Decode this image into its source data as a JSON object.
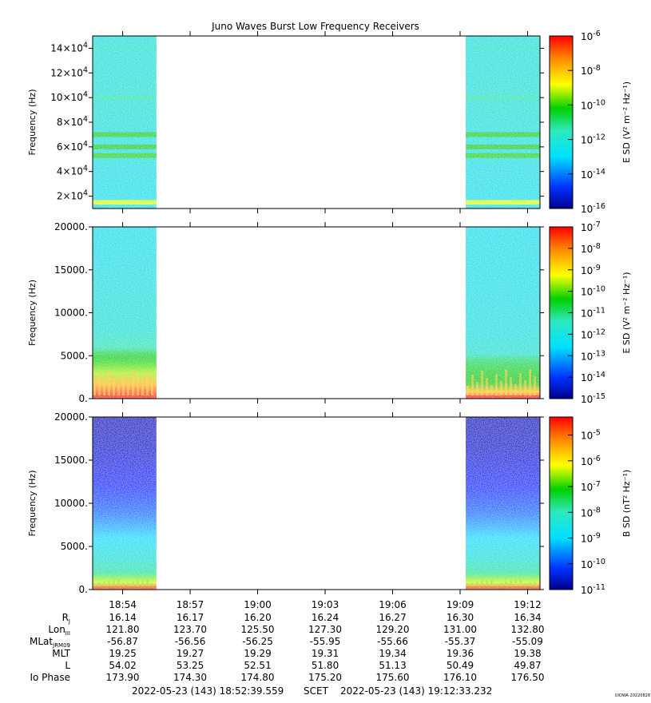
{
  "title": "Juno Waves Burst Low Frequency Receivers",
  "colors": {
    "axis": "#000000",
    "background": "#ffffff"
  },
  "chart_data": [
    {
      "type": "heatmap",
      "panel": 1,
      "ylabel": "Frequency (Hz)",
      "ylim": [
        10000,
        150000
      ],
      "yticks": [
        {
          "value": 20000,
          "label_base": "2×10",
          "label_exp": "4"
        },
        {
          "value": 40000,
          "label_base": "4×10",
          "label_exp": "4"
        },
        {
          "value": 60000,
          "label_base": "6×10",
          "label_exp": "4"
        },
        {
          "value": 80000,
          "label_base": "8×10",
          "label_exp": "4"
        },
        {
          "value": 100000,
          "label_base": "10×10",
          "label_exp": "4"
        },
        {
          "value": 120000,
          "label_base": "12×10",
          "label_exp": "4"
        },
        {
          "value": 140000,
          "label_base": "14×10",
          "label_exp": "4"
        }
      ],
      "data_segments": [
        {
          "start": "18:52:40",
          "end": "18:55:30"
        },
        {
          "start": "19:09:15",
          "end": "19:12:33"
        }
      ],
      "bands": [
        {
          "freq": 15000,
          "level": 0.72
        },
        {
          "freq": 53000,
          "level": 0.6
        },
        {
          "freq": 60000,
          "level": 0.57
        },
        {
          "freq": 70000,
          "level": 0.57
        },
        {
          "freq": 100000,
          "level": 0.45
        },
        {
          "freq": 140000,
          "level": 0.4
        }
      ],
      "colorbar": {
        "label": "E SD (V² m⁻² Hz⁻¹)",
        "exp_range": [
          -16,
          -6
        ],
        "ticks": [
          {
            "exp": -6,
            "label_base": "10",
            "label_exp": "-6"
          },
          {
            "exp": -8,
            "label_base": "10",
            "label_exp": "-8"
          },
          {
            "exp": -10,
            "label_base": "10",
            "label_exp": "-10"
          },
          {
            "exp": -12,
            "label_base": "10",
            "label_exp": "-12"
          },
          {
            "exp": -14,
            "label_base": "10",
            "label_exp": "-14"
          },
          {
            "exp": -16,
            "label_base": "10",
            "label_exp": "-16"
          }
        ]
      }
    },
    {
      "type": "heatmap",
      "panel": 2,
      "ylabel": "Frequency (Hz)",
      "ylim": [
        0,
        20000
      ],
      "yticks": [
        {
          "value": 0,
          "label_base": "0.",
          "label_exp": ""
        },
        {
          "value": 5000,
          "label_base": "5000.",
          "label_exp": ""
        },
        {
          "value": 10000,
          "label_base": "10000.",
          "label_exp": ""
        },
        {
          "value": 15000,
          "label_base": "15000.",
          "label_exp": ""
        },
        {
          "value": 20000,
          "label_base": "20000.",
          "label_exp": ""
        }
      ],
      "data_segments": [
        {
          "start": "18:52:40",
          "end": "18:55:30"
        },
        {
          "start": "19:09:15",
          "end": "19:12:33"
        }
      ],
      "colorbar": {
        "label": "E SD (V² m⁻² Hz⁻¹)",
        "exp_range": [
          -15,
          -7
        ],
        "ticks": [
          {
            "exp": -7,
            "label_base": "10",
            "label_exp": "-7"
          },
          {
            "exp": -8,
            "label_base": "10",
            "label_exp": "-8"
          },
          {
            "exp": -9,
            "label_base": "10",
            "label_exp": "-9"
          },
          {
            "exp": -10,
            "label_base": "10",
            "label_exp": "-10"
          },
          {
            "exp": -11,
            "label_base": "10",
            "label_exp": "-11"
          },
          {
            "exp": -12,
            "label_base": "10",
            "label_exp": "-12"
          },
          {
            "exp": -13,
            "label_base": "10",
            "label_exp": "-13"
          },
          {
            "exp": -14,
            "label_base": "10",
            "label_exp": "-14"
          },
          {
            "exp": -15,
            "label_base": "10",
            "label_exp": "-15"
          }
        ]
      }
    },
    {
      "type": "heatmap",
      "panel": 3,
      "ylabel": "Frequency (Hz)",
      "ylim": [
        0,
        20000
      ],
      "yticks": [
        {
          "value": 0,
          "label_base": "0.",
          "label_exp": ""
        },
        {
          "value": 5000,
          "label_base": "5000.",
          "label_exp": ""
        },
        {
          "value": 10000,
          "label_base": "10000.",
          "label_exp": ""
        },
        {
          "value": 15000,
          "label_base": "15000.",
          "label_exp": ""
        },
        {
          "value": 20000,
          "label_base": "20000.",
          "label_exp": ""
        }
      ],
      "data_segments": [
        {
          "start": "18:52:40",
          "end": "18:55:30"
        },
        {
          "start": "19:09:15",
          "end": "19:12:33"
        }
      ],
      "colorbar": {
        "label": "B SD (nT² Hz⁻¹)",
        "exp_range": [
          -11,
          -4.3
        ],
        "ticks": [
          {
            "exp": -5,
            "label_base": "10",
            "label_exp": "-5"
          },
          {
            "exp": -6,
            "label_base": "10",
            "label_exp": "-6"
          },
          {
            "exp": -7,
            "label_base": "10",
            "label_exp": "-7"
          },
          {
            "exp": -8,
            "label_base": "10",
            "label_exp": "-8"
          },
          {
            "exp": -9,
            "label_base": "10",
            "label_exp": "-9"
          },
          {
            "exp": -10,
            "label_base": "10",
            "label_exp": "-10"
          },
          {
            "exp": -11,
            "label_base": "10",
            "label_exp": "-11"
          }
        ]
      }
    }
  ],
  "time_axis": {
    "start": "18:52:40",
    "end": "19:12:33",
    "major_ticks": [
      "18:54",
      "18:57",
      "19:00",
      "19:03",
      "19:06",
      "19:09",
      "19:12"
    ],
    "major_labels": [
      "18:54",
      "18:57",
      "19:00",
      "19:03",
      "19:06",
      "19:09",
      "19:12"
    ]
  },
  "ephemeris": {
    "rows": [
      {
        "label": "R",
        "sub": "J",
        "values": [
          "16.14",
          "16.17",
          "16.20",
          "16.24",
          "16.27",
          "16.30",
          "16.34"
        ]
      },
      {
        "label": "Lon",
        "sub": "III",
        "values": [
          "121.80",
          "123.70",
          "125.50",
          "127.30",
          "129.20",
          "131.00",
          "132.80"
        ]
      },
      {
        "label": "MLat",
        "sub": "JRM09",
        "values": [
          "-56.87",
          "-56.56",
          "-56.25",
          "-55.95",
          "-55.66",
          "-55.37",
          "-55.09"
        ]
      },
      {
        "label": "MLT",
        "sub": "",
        "values": [
          "19.25",
          "19.27",
          "19.29",
          "19.31",
          "19.34",
          "19.36",
          "19.38"
        ]
      },
      {
        "label": "L",
        "sub": "",
        "values": [
          "54.02",
          "53.25",
          "52.51",
          "51.80",
          "51.13",
          "50.49",
          "49.87"
        ]
      },
      {
        "label": "Io Phase",
        "sub": "",
        "values": [
          "173.90",
          "174.30",
          "174.80",
          "175.20",
          "175.60",
          "176.10",
          "176.50"
        ]
      }
    ]
  },
  "footer": {
    "start_stamp": "2022-05-23 (143) 18:52:39.559",
    "scet": "SCET",
    "end_stamp": "2022-05-23 (143) 19:12:33.232",
    "credit": "UIOWA 20220828"
  }
}
